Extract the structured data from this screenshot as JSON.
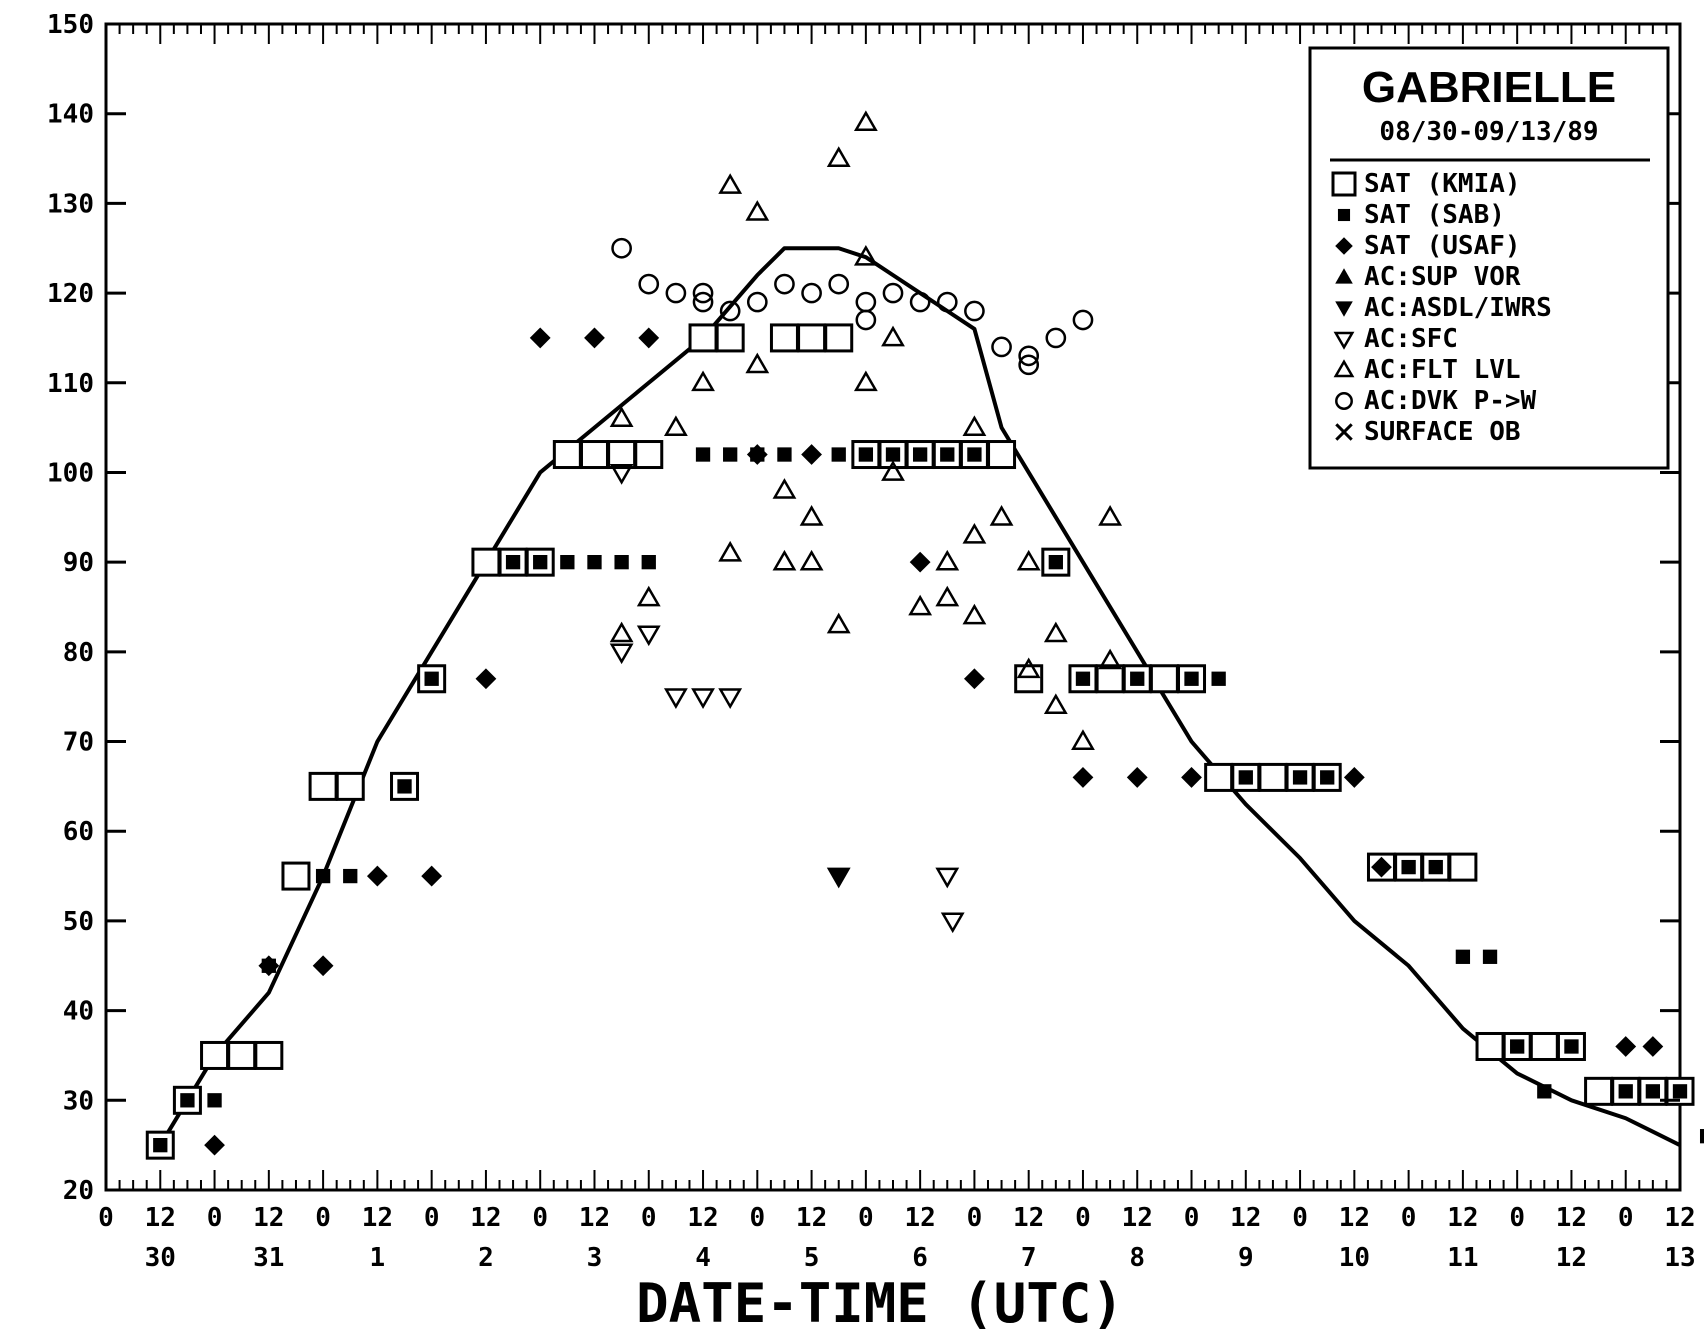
{
  "chart_data": {
    "type": "scatter",
    "title": "GABRIELLE",
    "subtitle": "08/30-09/13/89",
    "xlabel": "DATE-TIME (UTC)",
    "ylabel": "",
    "xlim": [
      0,
      14.5
    ],
    "ylim": [
      20,
      150
    ],
    "yticks": [
      20,
      30,
      40,
      50,
      60,
      70,
      80,
      90,
      100,
      110,
      120,
      130,
      140,
      150
    ],
    "xticks": [
      {
        "x": 0.0,
        "label": "0"
      },
      {
        "x": 0.5,
        "label": "12"
      },
      {
        "x": 1.0,
        "label": "0"
      },
      {
        "x": 1.5,
        "label": "12"
      },
      {
        "x": 2.0,
        "label": "0"
      },
      {
        "x": 2.5,
        "label": "12"
      },
      {
        "x": 3.0,
        "label": "0"
      },
      {
        "x": 3.5,
        "label": "12"
      },
      {
        "x": 4.0,
        "label": "0"
      },
      {
        "x": 4.5,
        "label": "12"
      },
      {
        "x": 5.0,
        "label": "0"
      },
      {
        "x": 5.5,
        "label": "12"
      },
      {
        "x": 6.0,
        "label": "0"
      },
      {
        "x": 6.5,
        "label": "12"
      },
      {
        "x": 7.0,
        "label": "0"
      },
      {
        "x": 7.5,
        "label": "12"
      },
      {
        "x": 8.0,
        "label": "0"
      },
      {
        "x": 8.5,
        "label": "12"
      },
      {
        "x": 9.0,
        "label": "0"
      },
      {
        "x": 9.5,
        "label": "12"
      },
      {
        "x": 10.0,
        "label": "0"
      },
      {
        "x": 10.5,
        "label": "12"
      },
      {
        "x": 11.0,
        "label": "0"
      },
      {
        "x": 11.5,
        "label": "12"
      },
      {
        "x": 12.0,
        "label": "0"
      },
      {
        "x": 12.5,
        "label": "12"
      },
      {
        "x": 13.0,
        "label": "0"
      },
      {
        "x": 13.5,
        "label": "12"
      },
      {
        "x": 14.0,
        "label": "0"
      },
      {
        "x": 14.5,
        "label": "12"
      }
    ],
    "day_labels": [
      {
        "x": 0.5,
        "label": "30"
      },
      {
        "x": 1.5,
        "label": "31"
      },
      {
        "x": 2.5,
        "label": "1"
      },
      {
        "x": 3.5,
        "label": "2"
      },
      {
        "x": 4.5,
        "label": "3"
      },
      {
        "x": 5.5,
        "label": "4"
      },
      {
        "x": 6.5,
        "label": "5"
      },
      {
        "x": 7.5,
        "label": "6"
      },
      {
        "x": 8.5,
        "label": "7"
      },
      {
        "x": 9.5,
        "label": "8"
      },
      {
        "x": 10.5,
        "label": "9"
      },
      {
        "x": 11.5,
        "label": "10"
      },
      {
        "x": 12.5,
        "label": "11"
      },
      {
        "x": 13.5,
        "label": "12"
      },
      {
        "x": 14.5,
        "label": "13"
      }
    ],
    "legend_placement": "top-right",
    "series": [
      {
        "name": "SAT (KMIA)",
        "marker": "square-open",
        "points": [
          [
            0.5,
            25
          ],
          [
            0.75,
            30
          ],
          [
            1.0,
            35
          ],
          [
            1.25,
            35
          ],
          [
            1.5,
            35
          ],
          [
            1.75,
            55
          ],
          [
            2.0,
            65
          ],
          [
            2.25,
            65
          ],
          [
            2.75,
            65
          ],
          [
            3.0,
            77
          ],
          [
            3.5,
            90
          ],
          [
            3.75,
            90
          ],
          [
            4.0,
            90
          ],
          [
            4.25,
            102
          ],
          [
            4.5,
            102
          ],
          [
            4.75,
            102
          ],
          [
            5.0,
            102
          ],
          [
            5.5,
            115
          ],
          [
            5.75,
            115
          ],
          [
            6.25,
            115
          ],
          [
            6.5,
            115
          ],
          [
            6.75,
            115
          ],
          [
            7.0,
            102
          ],
          [
            7.25,
            102
          ],
          [
            7.5,
            102
          ],
          [
            7.75,
            102
          ],
          [
            8.0,
            102
          ],
          [
            8.25,
            102
          ],
          [
            8.5,
            77
          ],
          [
            8.75,
            90
          ],
          [
            9.0,
            77
          ],
          [
            9.25,
            77
          ],
          [
            9.5,
            77
          ],
          [
            9.75,
            77
          ],
          [
            10.0,
            77
          ],
          [
            10.25,
            66
          ],
          [
            10.5,
            66
          ],
          [
            10.75,
            66
          ],
          [
            11.0,
            66
          ],
          [
            11.25,
            66
          ],
          [
            11.75,
            56
          ],
          [
            12.0,
            56
          ],
          [
            12.25,
            56
          ],
          [
            12.5,
            56
          ],
          [
            12.75,
            36
          ],
          [
            13.0,
            36
          ],
          [
            13.25,
            36
          ],
          [
            13.5,
            36
          ],
          [
            13.75,
            31
          ],
          [
            14.0,
            31
          ],
          [
            14.25,
            31
          ],
          [
            14.5,
            31
          ]
        ]
      },
      {
        "name": "SAT (SAB)",
        "marker": "square-filled",
        "points": [
          [
            0.5,
            25
          ],
          [
            0.75,
            30
          ],
          [
            1.0,
            30
          ],
          [
            1.5,
            45
          ],
          [
            2.0,
            55
          ],
          [
            2.25,
            55
          ],
          [
            2.75,
            65
          ],
          [
            3.0,
            77
          ],
          [
            3.75,
            90
          ],
          [
            4.0,
            90
          ],
          [
            4.25,
            90
          ],
          [
            4.5,
            90
          ],
          [
            4.75,
            90
          ],
          [
            5.0,
            90
          ],
          [
            5.5,
            102
          ],
          [
            5.75,
            102
          ],
          [
            6.0,
            102
          ],
          [
            6.25,
            102
          ],
          [
            6.75,
            102
          ],
          [
            7.0,
            102
          ],
          [
            7.25,
            102
          ],
          [
            7.5,
            102
          ],
          [
            7.75,
            102
          ],
          [
            8.0,
            102
          ],
          [
            8.75,
            90
          ],
          [
            9.0,
            77
          ],
          [
            9.5,
            77
          ],
          [
            10.0,
            77
          ],
          [
            10.25,
            77
          ],
          [
            10.5,
            66
          ],
          [
            11.0,
            66
          ],
          [
            11.25,
            66
          ],
          [
            12.0,
            56
          ],
          [
            12.25,
            56
          ],
          [
            12.5,
            46
          ],
          [
            12.75,
            46
          ],
          [
            13.0,
            36
          ],
          [
            13.25,
            31
          ],
          [
            13.5,
            36
          ],
          [
            14.0,
            31
          ],
          [
            14.25,
            31
          ],
          [
            14.5,
            31
          ],
          [
            14.75,
            26
          ]
        ]
      },
      {
        "name": "SAT (USAF)",
        "marker": "diamond-filled",
        "points": [
          [
            1.0,
            25
          ],
          [
            1.5,
            45
          ],
          [
            2.0,
            45
          ],
          [
            2.5,
            55
          ],
          [
            3.0,
            55
          ],
          [
            3.5,
            77
          ],
          [
            4.0,
            115
          ],
          [
            4.5,
            115
          ],
          [
            5.0,
            115
          ],
          [
            6.0,
            102
          ],
          [
            6.5,
            102
          ],
          [
            7.5,
            90
          ],
          [
            8.0,
            77
          ],
          [
            9.0,
            66
          ],
          [
            9.5,
            66
          ],
          [
            10.0,
            66
          ],
          [
            11.5,
            66
          ],
          [
            11.75,
            56
          ],
          [
            14.0,
            36
          ],
          [
            14.25,
            36
          ]
        ]
      },
      {
        "name": "AC:SUP VOR",
        "marker": "triangle-up-filled",
        "points": []
      },
      {
        "name": "AC:ASDL/IWRS",
        "marker": "triangle-down-filled",
        "points": [
          [
            6.75,
            55
          ]
        ]
      },
      {
        "name": "AC:SFC",
        "marker": "triangle-down-open",
        "points": [
          [
            4.75,
            100
          ],
          [
            4.75,
            80
          ],
          [
            5.0,
            82
          ],
          [
            5.25,
            75
          ],
          [
            5.5,
            75
          ],
          [
            5.75,
            75
          ],
          [
            6.75,
            55
          ],
          [
            7.75,
            55
          ],
          [
            7.8,
            50
          ]
        ]
      },
      {
        "name": "AC:FLT LVL",
        "marker": "triangle-up-open",
        "points": [
          [
            4.75,
            106
          ],
          [
            5.0,
            86
          ],
          [
            4.75,
            82
          ],
          [
            5.25,
            105
          ],
          [
            5.5,
            110
          ],
          [
            5.75,
            91
          ],
          [
            5.75,
            132
          ],
          [
            6.0,
            112
          ],
          [
            6.0,
            129
          ],
          [
            6.25,
            98
          ],
          [
            6.25,
            90
          ],
          [
            6.5,
            90
          ],
          [
            6.5,
            95
          ],
          [
            6.75,
            83
          ],
          [
            6.75,
            135
          ],
          [
            7.0,
            139
          ],
          [
            7.0,
            124
          ],
          [
            7.0,
            110
          ],
          [
            7.25,
            115
          ],
          [
            7.25,
            100
          ],
          [
            7.5,
            85
          ],
          [
            7.75,
            86
          ],
          [
            7.75,
            90
          ],
          [
            8.0,
            105
          ],
          [
            8.0,
            93
          ],
          [
            8.0,
            84
          ],
          [
            8.25,
            95
          ],
          [
            8.5,
            90
          ],
          [
            8.5,
            78
          ],
          [
            8.75,
            82
          ],
          [
            8.75,
            74
          ],
          [
            9.0,
            70
          ],
          [
            9.25,
            95
          ],
          [
            9.25,
            79
          ]
        ]
      },
      {
        "name": "AC:DVK P->W",
        "marker": "circle-open",
        "points": [
          [
            4.75,
            125
          ],
          [
            5.0,
            121
          ],
          [
            5.25,
            120
          ],
          [
            5.5,
            120
          ],
          [
            5.5,
            119
          ],
          [
            5.75,
            118
          ],
          [
            6.0,
            119
          ],
          [
            6.25,
            121
          ],
          [
            6.5,
            120
          ],
          [
            6.75,
            121
          ],
          [
            7.0,
            119
          ],
          [
            7.0,
            117
          ],
          [
            7.25,
            120
          ],
          [
            7.5,
            119
          ],
          [
            7.75,
            119
          ],
          [
            8.0,
            118
          ],
          [
            8.25,
            114
          ],
          [
            8.5,
            113
          ],
          [
            8.5,
            112
          ],
          [
            8.75,
            115
          ],
          [
            9.0,
            117
          ]
        ]
      },
      {
        "name": "SURFACE OB",
        "marker": "x",
        "points": []
      }
    ],
    "best_track": {
      "x": [
        0.5,
        1.0,
        1.5,
        2.0,
        2.5,
        3.0,
        3.5,
        4.0,
        4.5,
        5.0,
        5.5,
        6.0,
        6.25,
        6.5,
        6.75,
        7.0,
        7.25,
        7.5,
        7.75,
        8.0,
        8.25,
        8.5,
        9.0,
        9.5,
        10.0,
        10.5,
        11.0,
        11.5,
        12.0,
        12.5,
        13.0,
        13.5,
        14.0,
        14.5
      ],
      "y": [
        25,
        35,
        42,
        55,
        70,
        80,
        90,
        100,
        105,
        110,
        115,
        122,
        125,
        125,
        125,
        124,
        122,
        120,
        118,
        116,
        105,
        100,
        90,
        80,
        70,
        63,
        57,
        50,
        45,
        38,
        33,
        30,
        28,
        25
      ]
    }
  }
}
